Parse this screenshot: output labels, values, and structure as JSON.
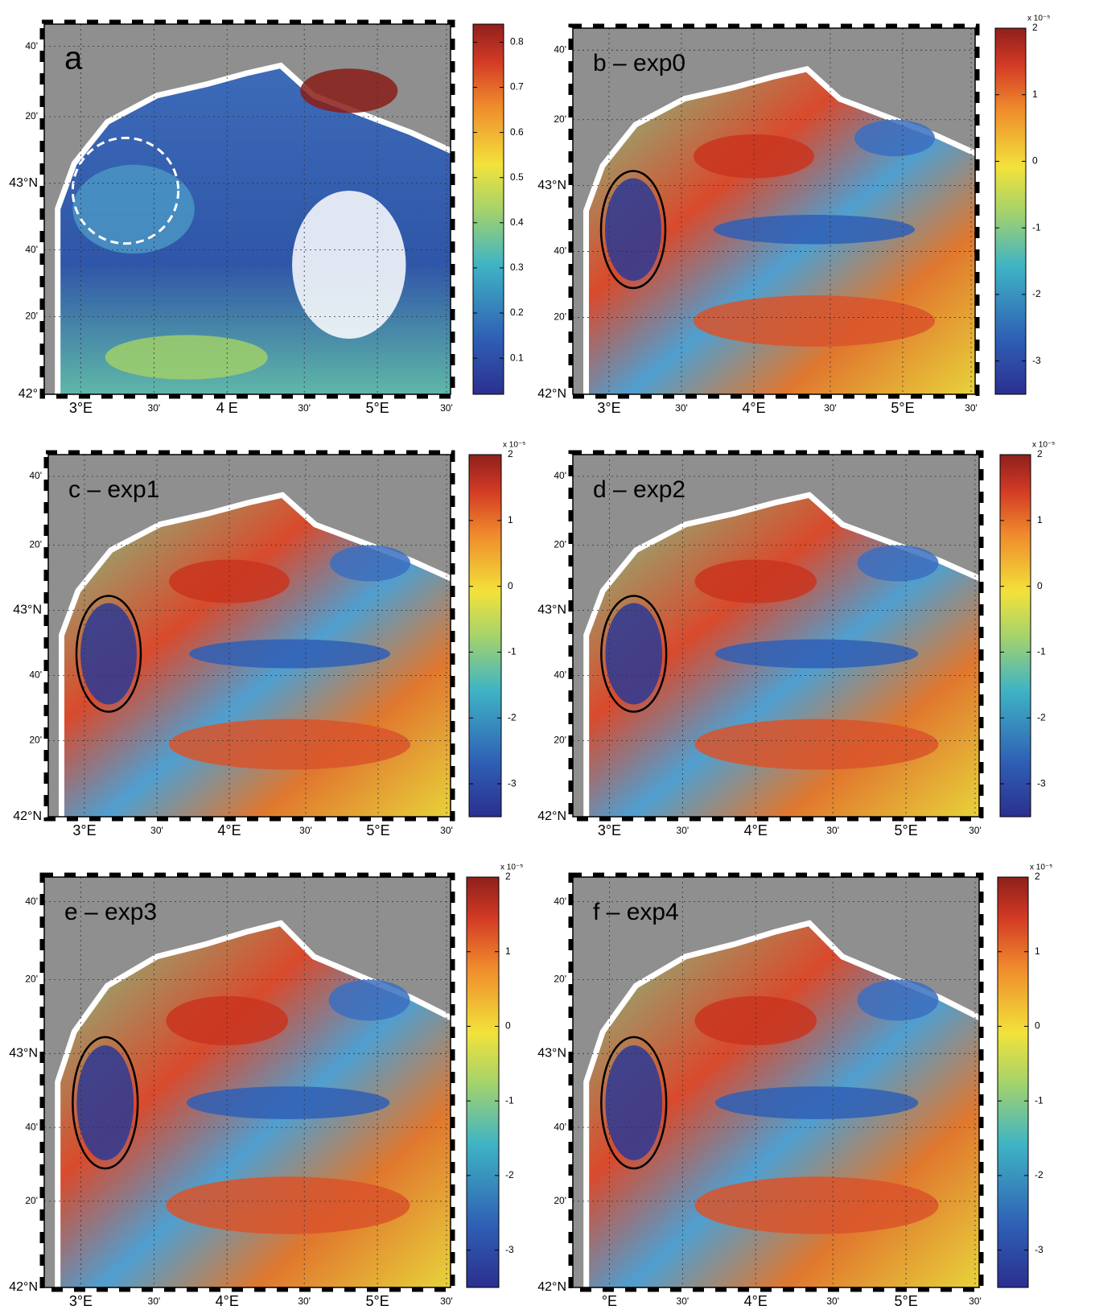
{
  "panels": [
    {
      "label": "a",
      "lat_labels": [
        "40'",
        "20'",
        "43°N",
        "40'",
        "20'",
        "42°"
      ],
      "lon_labels": [
        "3°E",
        "30'",
        "4 E",
        "30'",
        "5°E",
        "30'"
      ],
      "colorbar": {
        "lim": [
          0.02,
          0.84
        ],
        "ticks": [
          0.1,
          0.2,
          0.3,
          0.4,
          0.5,
          0.6,
          0.7,
          0.8
        ]
      }
    },
    {
      "label": "b – exp0",
      "lat_labels": [
        "40'",
        "20'",
        "43°N",
        "40'",
        "20'",
        "42°N"
      ],
      "lon_labels": [
        "3°E",
        "30'",
        "4°E",
        "30'",
        "5°E",
        "30'"
      ],
      "colorbar": {
        "lim": [
          -3.5,
          2
        ],
        "ticks": [
          -3,
          -2,
          -1,
          0,
          1,
          2
        ],
        "exponent": "x 10⁻⁵"
      }
    },
    {
      "label": "c – exp1",
      "lat_labels": [
        "40'",
        "20'",
        "43°N",
        "40'",
        "20'",
        "42°N"
      ],
      "lon_labels": [
        "3°E",
        "30'",
        "4°E",
        "30'",
        "5°E",
        "30'"
      ],
      "colorbar": {
        "lim": [
          -3.5,
          2
        ],
        "ticks": [
          -3,
          -2,
          -1,
          0,
          1,
          2
        ],
        "exponent": "x 10⁻⁵"
      }
    },
    {
      "label": "d – exp2",
      "lat_labels": [
        "40'",
        "20'",
        "43°N",
        "40'",
        "20'",
        "42°N"
      ],
      "lon_labels": [
        "3°E",
        "30'",
        "4°E",
        "30'",
        "5°E",
        "30'"
      ],
      "colorbar": {
        "lim": [
          -3.5,
          2
        ],
        "ticks": [
          -3,
          -2,
          -1,
          0,
          1,
          2
        ],
        "exponent": "x 10⁻⁵"
      }
    },
    {
      "label": "e – exp3",
      "lat_labels": [
        "40'",
        "20'",
        "43°N",
        "40'",
        "20'",
        "42°N"
      ],
      "lon_labels": [
        "3°E",
        "30'",
        "4°E",
        "30'",
        "5°E",
        "30'"
      ],
      "colorbar": {
        "lim": [
          -3.5,
          2
        ],
        "ticks": [
          -3,
          -2,
          -1,
          0,
          1,
          2
        ],
        "exponent": "x 10⁻⁵"
      }
    },
    {
      "label": "f – exp4",
      "lat_labels": [
        "40'",
        "20'",
        "43°N",
        "40'",
        "20'",
        "42°N"
      ],
      "lon_labels": [
        "°E",
        "30'",
        "4°E",
        "30'",
        "5°E",
        "30'"
      ],
      "colorbar": {
        "lim": [
          -3.5,
          2
        ],
        "ticks": [
          -3,
          -2,
          -1,
          0,
          1,
          2
        ],
        "exponent": "x 10⁻⁵"
      }
    }
  ]
}
